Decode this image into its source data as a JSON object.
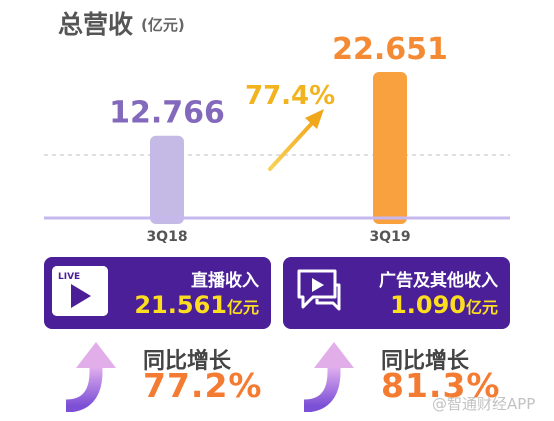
{
  "header": {
    "title": "总营收",
    "unit": "(亿元)"
  },
  "chart_data": {
    "type": "bar",
    "title": "总营收",
    "categories": [
      "3Q18",
      "3Q19"
    ],
    "values": [
      12.766,
      22.651
    ],
    "value_labels": [
      "12.766",
      "22.651"
    ],
    "bar_colors": [
      "#c5bae6",
      "#f9a03f"
    ],
    "label_colors": [
      "#8369bc",
      "#f48b34"
    ],
    "growth_label": "77.4%",
    "growth_color": "#f2b41e",
    "grid": false,
    "legend": "none"
  },
  "cards": [
    {
      "label": "直播收入",
      "value": "21.561",
      "unit": "亿元",
      "icon": "live-video-icon",
      "badge": "LIVE"
    },
    {
      "label": "广告及其他收入",
      "value": "1.090",
      "unit": "亿元",
      "icon": "ad-chat-icon"
    }
  ],
  "yoy": [
    {
      "label": "同比增长",
      "value": "77.2%"
    },
    {
      "label": "同比增长",
      "value": "81.3%"
    }
  ],
  "colors": {
    "card_bg": "#4a1f97",
    "card_value": "#fcdd1f",
    "yoy_value": "#f47b32",
    "arrow_from": "#7b4fd6",
    "arrow_to": "#e9b6f0",
    "baseline": "#c6b8ef"
  },
  "watermark": "@智通财经APP"
}
